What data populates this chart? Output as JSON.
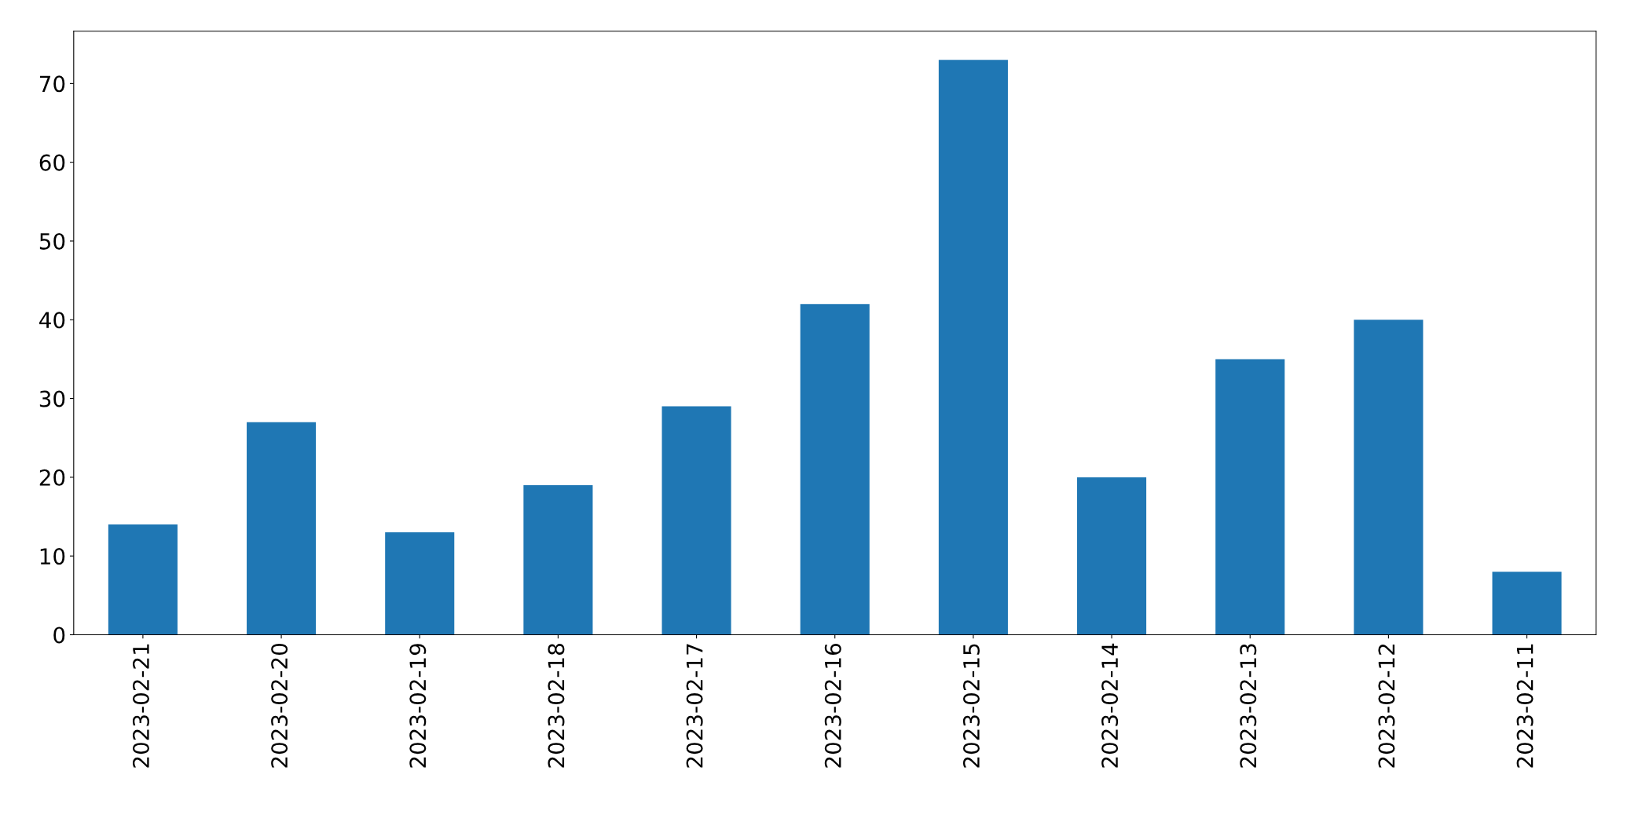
{
  "chart_data": {
    "type": "bar",
    "categories": [
      "2023-02-21",
      "2023-02-20",
      "2023-02-19",
      "2023-02-18",
      "2023-02-17",
      "2023-02-16",
      "2023-02-15",
      "2023-02-14",
      "2023-02-13",
      "2023-02-12",
      "2023-02-11"
    ],
    "values": [
      14,
      27,
      13,
      19,
      29,
      42,
      73,
      20,
      35,
      40,
      8
    ],
    "color": "#1f77b4",
    "ylim": [
      0,
      76.65
    ],
    "yticks": [
      0,
      10,
      20,
      30,
      40,
      50,
      60,
      70
    ],
    "grid": false,
    "legend": false
  }
}
